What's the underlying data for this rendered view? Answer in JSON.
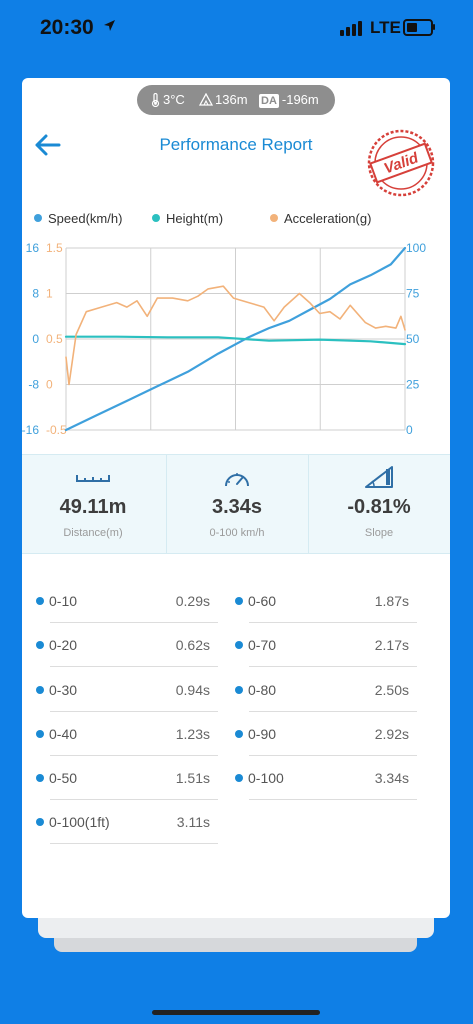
{
  "status_bar": {
    "time": "20:30",
    "network": "LTE",
    "battery_level": 0.45
  },
  "conditions": {
    "temperature": "3°C",
    "altitude": "136m",
    "density_altitude_badge": "DA",
    "density_altitude": "-196m"
  },
  "header": {
    "title": "Performance Report",
    "stamp_text": "Valid"
  },
  "legend": [
    {
      "label": "Speed(km/h)",
      "color": "#3fa0dc"
    },
    {
      "label": "Height(m)",
      "color": "#2bc0c0"
    },
    {
      "label": "Acceleration(g)",
      "color": "#f2b27a"
    }
  ],
  "chart_data": {
    "type": "line",
    "title": "",
    "x": [
      0,
      0.5,
      1,
      1.5,
      2,
      2.5,
      3,
      3.34
    ],
    "axes": {
      "left_outer": {
        "ticks": [
          "16",
          "8",
          "0",
          "-8",
          "-16"
        ],
        "range": [
          -16,
          16
        ],
        "color": "#3fa0dc"
      },
      "left_inner": {
        "ticks": [
          "1.5",
          "1",
          "0.5",
          "0",
          "-0.5"
        ],
        "range": [
          -0.5,
          1.5
        ],
        "color": "#f2b27a"
      },
      "right": {
        "ticks": [
          "100",
          "75",
          "50",
          "25",
          "0"
        ],
        "range": [
          0,
          100
        ],
        "color": "#3fa0dc"
      }
    },
    "grid": true,
    "series": [
      {
        "name": "Speed(km/h)",
        "color": "#3fa0dc",
        "axis": "right",
        "points": [
          [
            0,
            0
          ],
          [
            0.3,
            8
          ],
          [
            0.6,
            16
          ],
          [
            0.9,
            24
          ],
          [
            1.2,
            32
          ],
          [
            1.5,
            42
          ],
          [
            1.8,
            51
          ],
          [
            2.0,
            56
          ],
          [
            2.2,
            60
          ],
          [
            2.4,
            66
          ],
          [
            2.6,
            72
          ],
          [
            2.8,
            80
          ],
          [
            3.0,
            85
          ],
          [
            3.2,
            91
          ],
          [
            3.34,
            100
          ]
        ]
      },
      {
        "name": "Height(m)",
        "color": "#2bc0c0",
        "axis": "left_outer",
        "points": [
          [
            0,
            0.4
          ],
          [
            0.5,
            0.4
          ],
          [
            1,
            0.3
          ],
          [
            1.5,
            0.3
          ],
          [
            2,
            -0.3
          ],
          [
            2.5,
            -0.1
          ],
          [
            3,
            -0.4
          ],
          [
            3.34,
            -0.9
          ]
        ]
      },
      {
        "name": "Acceleration(g)",
        "color": "#f2b27a",
        "axis": "left_inner",
        "points": [
          [
            0.0,
            0.3
          ],
          [
            0.03,
            0.0
          ],
          [
            0.1,
            0.55
          ],
          [
            0.2,
            0.8
          ],
          [
            0.35,
            0.85
          ],
          [
            0.5,
            0.9
          ],
          [
            0.6,
            0.85
          ],
          [
            0.7,
            0.92
          ],
          [
            0.8,
            0.75
          ],
          [
            0.9,
            0.95
          ],
          [
            1.05,
            0.95
          ],
          [
            1.2,
            0.92
          ],
          [
            1.3,
            0.97
          ],
          [
            1.4,
            1.05
          ],
          [
            1.55,
            1.08
          ],
          [
            1.65,
            0.95
          ],
          [
            1.8,
            0.9
          ],
          [
            1.95,
            0.85
          ],
          [
            2.05,
            0.7
          ],
          [
            2.15,
            0.85
          ],
          [
            2.3,
            1.0
          ],
          [
            2.4,
            0.9
          ],
          [
            2.5,
            0.78
          ],
          [
            2.6,
            0.8
          ],
          [
            2.7,
            0.72
          ],
          [
            2.8,
            0.87
          ],
          [
            2.95,
            0.68
          ],
          [
            3.05,
            0.62
          ],
          [
            3.15,
            0.64
          ],
          [
            3.25,
            0.62
          ],
          [
            3.3,
            0.75
          ],
          [
            3.34,
            0.6
          ]
        ]
      }
    ]
  },
  "metrics": [
    {
      "value": "49.11m",
      "label": "Distance(m)",
      "icon": "ruler-icon"
    },
    {
      "value": "3.34s",
      "label": "0-100 km/h",
      "icon": "speedometer-icon"
    },
    {
      "value": "-0.81%",
      "label": "Slope",
      "icon": "slope-icon"
    }
  ],
  "splits": [
    {
      "name": "0-10",
      "time": "0.29s"
    },
    {
      "name": "0-60",
      "time": "1.87s"
    },
    {
      "name": "0-20",
      "time": "0.62s"
    },
    {
      "name": "0-70",
      "time": "2.17s"
    },
    {
      "name": "0-30",
      "time": "0.94s"
    },
    {
      "name": "0-80",
      "time": "2.50s"
    },
    {
      "name": "0-40",
      "time": "1.23s"
    },
    {
      "name": "0-90",
      "time": "2.92s"
    },
    {
      "name": "0-50",
      "time": "1.51s"
    },
    {
      "name": "0-100",
      "time": "3.34s"
    },
    {
      "name": "0-100(1ft)",
      "time": "3.11s"
    }
  ]
}
